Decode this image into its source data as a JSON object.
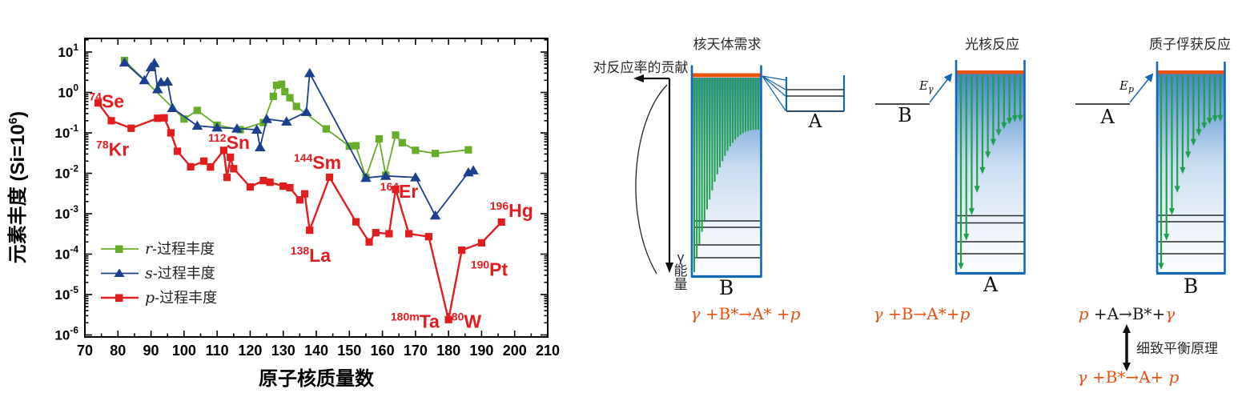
{
  "chart_data": {
    "type": "line",
    "xlabel": "原子核质量数",
    "ylabel": {
      "prefix": "元素丰度 (Si=10",
      "sup": "6",
      "suffix": ")"
    },
    "xlim": [
      70,
      210
    ],
    "ylim": [
      1e-06,
      21.7
    ],
    "x_major_ticks": [
      70,
      80,
      90,
      100,
      110,
      120,
      130,
      140,
      150,
      160,
      170,
      180,
      190,
      200,
      210
    ],
    "y_tick_exponents": [
      1,
      0,
      -1,
      -2,
      -3,
      -4,
      -5,
      -6
    ],
    "grid": false,
    "legend_position": "lower-left",
    "series": [
      {
        "name": "r-过程丰度",
        "name_italic": "r",
        "name_rest": "-过程丰度",
        "color": "#68ad29",
        "marker": "square",
        "line_width": 1.8,
        "points": [
          [
            82,
            6.2
          ],
          [
            100,
            0.22
          ],
          [
            104,
            0.36
          ],
          [
            110,
            0.155
          ],
          [
            117,
            0.12
          ],
          [
            124,
            0.18
          ],
          [
            127,
            0.8
          ],
          [
            128,
            1.5
          ],
          [
            129.5,
            1.6
          ],
          [
            130.5,
            1.05
          ],
          [
            132,
            0.74
          ],
          [
            134,
            0.45
          ],
          [
            143,
            0.125
          ],
          [
            150,
            0.047
          ],
          [
            152,
            0.048
          ],
          [
            155,
            0.0078
          ],
          [
            159,
            0.071
          ],
          [
            161,
            0.009
          ],
          [
            164,
            0.088
          ],
          [
            166,
            0.057
          ],
          [
            170,
            0.037
          ],
          [
            176,
            0.031
          ],
          [
            186,
            0.038
          ]
        ]
      },
      {
        "name": "s-过程丰度",
        "name_italic": "s",
        "name_rest": "-过程丰度",
        "color": "#1d3f8f",
        "marker": "triangle",
        "line_width": 1.8,
        "points": [
          [
            82,
            5.5
          ],
          [
            88,
            2.0
          ],
          [
            90,
            4.2
          ],
          [
            91,
            5.3
          ],
          [
            92,
            1.2
          ],
          [
            93,
            1.8
          ],
          [
            95,
            1.85
          ],
          [
            96.5,
            0.41
          ],
          [
            104,
            0.15
          ],
          [
            110,
            0.135
          ],
          [
            116,
            0.128
          ],
          [
            122,
            0.12
          ],
          [
            123,
            0.044
          ],
          [
            125,
            0.22
          ],
          [
            131,
            0.19
          ],
          [
            137,
            0.33
          ],
          [
            138,
            3.0
          ],
          [
            155,
            0.0077
          ],
          [
            161,
            0.0086
          ],
          [
            170,
            0.0079
          ],
          [
            176,
            0.0009
          ],
          [
            186,
            0.0105
          ],
          [
            187.5,
            0.0118
          ]
        ]
      },
      {
        "name": "p-过程丰度",
        "name_italic": "p",
        "name_rest": "-过程丰度",
        "color": "#e21d1f",
        "marker": "square",
        "line_width": 2.4,
        "points": [
          [
            74,
            0.55
          ],
          [
            78,
            0.2
          ],
          [
            84,
            0.13
          ],
          [
            92,
            0.23
          ],
          [
            94,
            0.235
          ],
          [
            96,
            0.1
          ],
          [
            98,
            0.035
          ],
          [
            102,
            0.0145
          ],
          [
            106,
            0.02
          ],
          [
            108,
            0.0143
          ],
          [
            112,
            0.037
          ],
          [
            113,
            0.0079
          ],
          [
            114,
            0.025
          ],
          [
            115,
            0.013
          ],
          [
            120,
            0.0046
          ],
          [
            124,
            0.0066
          ],
          [
            126,
            0.006
          ],
          [
            130,
            0.0048
          ],
          [
            132,
            0.0044
          ],
          [
            135,
            0.0022
          ],
          [
            136.5,
            0.0031
          ],
          [
            138,
            0.00039
          ],
          [
            144,
            0.008
          ],
          [
            152,
            0.00063
          ],
          [
            156,
            0.0002
          ],
          [
            158,
            0.00034
          ],
          [
            162,
            0.00032
          ],
          [
            164,
            0.004
          ],
          [
            168,
            0.00032
          ],
          [
            174,
            0.00027
          ],
          [
            180,
            2.4e-06
          ],
          [
            184,
            0.000125
          ],
          [
            190,
            0.00019
          ],
          [
            196,
            0.00062
          ]
        ]
      }
    ],
    "annotations": [
      {
        "sup": "74",
        "text": "Se",
        "x": 71.3,
        "y": 0.42
      },
      {
        "sup": "78",
        "text": "Kr",
        "x": 73.4,
        "y": 0.027
      },
      {
        "sup": "112",
        "text": "Sn",
        "x": 107.3,
        "y": 0.04
      },
      {
        "sup": "144",
        "text": "Sm",
        "x": 133.2,
        "y": 0.0128
      },
      {
        "sup": "138",
        "text": "La",
        "x": 132.2,
        "y": 6.5e-05
      },
      {
        "sup": "164",
        "text": "Er",
        "x": 159.3,
        "y": 0.0025
      },
      {
        "sup": "180m",
        "text": "Ta",
        "x": 162.5,
        "y": 1.5e-06
      },
      {
        "sup": "180",
        "text": "W",
        "x": 179.0,
        "y": 1.5e-06
      },
      {
        "sup": "190",
        "text": "Pt",
        "x": 186.7,
        "y": 2.9e-05
      },
      {
        "sup": "196",
        "text": "Hg",
        "x": 192.5,
        "y": 0.00083
      }
    ],
    "annotation_color": "#e21d1f"
  },
  "right_panel": {
    "titles": [
      "核天体需求",
      "光核反应",
      "质子俘获反应"
    ],
    "contribution_label": "对反应率的贡献",
    "gamma_energy_label": "γ能量",
    "diagram1": {
      "box_label": "B",
      "side_box_label": "A",
      "equation": [
        {
          "t": "γ",
          "i": 1,
          "o": 1
        },
        {
          "t": " +B*",
          "o": 1
        },
        {
          "t": "→",
          "o": 1
        },
        {
          "t": "A* +",
          "o": 1
        },
        {
          "t": "p",
          "i": 1,
          "o": 1
        }
      ]
    },
    "diagram2": {
      "level_label": "B",
      "box_label": "A",
      "energy_label": {
        "base": "E",
        "sub": "γ"
      },
      "equation": [
        {
          "t": "γ",
          "i": 1,
          "o": 1
        },
        {
          "t": " +B",
          "o": 1
        },
        {
          "t": "→",
          "o": 1
        },
        {
          "t": "A*+",
          "o": 1
        },
        {
          "t": "p",
          "i": 1,
          "o": 1
        }
      ]
    },
    "diagram3": {
      "level_label": "A",
      "box_label": "B",
      "energy_label": {
        "base": "E",
        "sub": "p"
      },
      "equation_top": [
        {
          "t": "p",
          "i": 1,
          "o": 1
        },
        {
          "t": " +A",
          "o": 0
        },
        {
          "t": "→",
          "o": 0
        },
        {
          "t": "B*+",
          "o": 0
        },
        {
          "t": "γ",
          "i": 1,
          "o": 1
        }
      ],
      "balance_label": "细致平衡原理",
      "equation_bottom": [
        {
          "t": "γ",
          "i": 1,
          "o": 1
        },
        {
          "t": " +B*",
          "o": 1
        },
        {
          "t": "→",
          "o": 1
        },
        {
          "t": "A+ ",
          "o": 1
        },
        {
          "t": "p",
          "i": 1,
          "o": 1
        }
      ]
    },
    "colors": {
      "box_border": "#1467b6",
      "top_bar": "#e8540e",
      "arrow_green": "#1fa04b",
      "equation_orange": "#e8500f",
      "gradient_top": "#4a86c6",
      "level_line": "#2b2b2b"
    }
  }
}
